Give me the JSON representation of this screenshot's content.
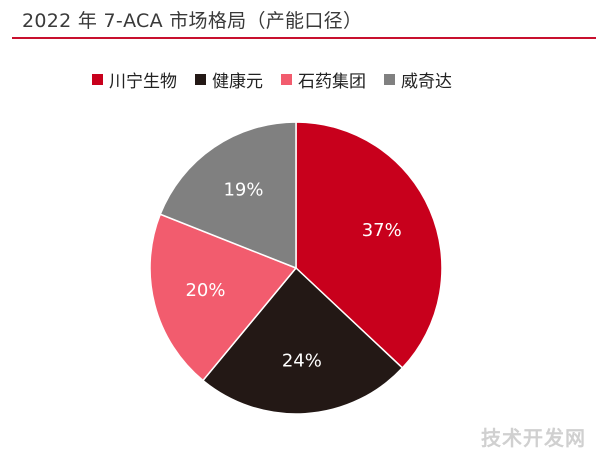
{
  "chart_data": {
    "type": "pie",
    "title": "2022 年 7-ACA 市场格局（产能口径）",
    "categories": [
      "川宁生物",
      "健康元",
      "石药集团",
      "威奇达"
    ],
    "values": [
      37,
      24,
      20,
      19
    ],
    "value_labels": [
      "37%",
      "24%",
      "20%",
      "19%"
    ],
    "colors": [
      "#c8001c",
      "#231815",
      "#f25c6e",
      "#808080"
    ],
    "label_colors": [
      "#ffffff",
      "#ffffff",
      "#ffffff",
      "#ffffff"
    ],
    "legend_position": "top",
    "start_angle": "12 o'clock",
    "direction": "clockwise"
  },
  "watermark": "技术开发网"
}
